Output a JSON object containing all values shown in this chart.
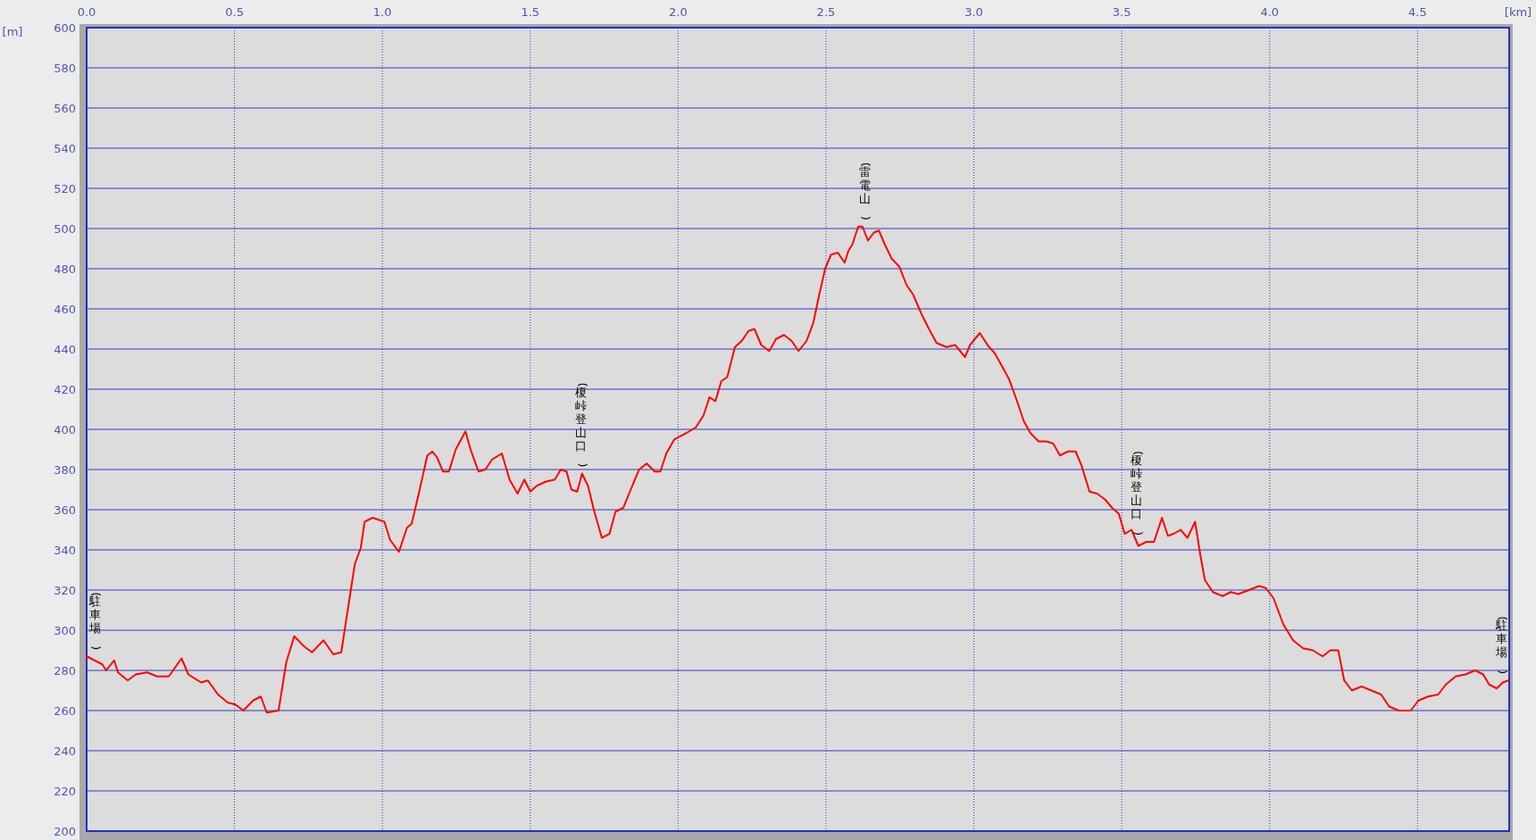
{
  "chart_data": {
    "type": "line",
    "xlabel": "[km]",
    "ylabel": "[m]",
    "xlim": [
      0,
      4.81
    ],
    "ylim": [
      200,
      600
    ],
    "xticks": [
      {
        "value": 0,
        "label": "0.0"
      },
      0.5,
      {
        "value": 1,
        "label": "1.0"
      },
      1.5,
      {
        "value": 2,
        "label": "2.0"
      },
      2.5,
      {
        "value": 3,
        "label": "3.0"
      },
      3.5,
      {
        "value": 4,
        "label": "4.0"
      },
      4.5
    ],
    "yticks": [
      200,
      220,
      240,
      260,
      280,
      300,
      320,
      340,
      360,
      380,
      400,
      420,
      440,
      460,
      480,
      500,
      520,
      540,
      560,
      580,
      600
    ],
    "grid": true,
    "marker": "none",
    "line_style": "solid",
    "x": [
      0,
      0.04,
      0.053,
      0.066,
      0.093,
      0.106,
      0.139,
      0.166,
      0.205,
      0.238,
      0.278,
      0.321,
      0.344,
      0.387,
      0.41,
      0.444,
      0.477,
      0.503,
      0.53,
      0.563,
      0.589,
      0.609,
      0.649,
      0.675,
      0.702,
      0.735,
      0.762,
      0.801,
      0.834,
      0.861,
      0.887,
      0.907,
      0.927,
      0.94,
      0.967,
      1.007,
      1.026,
      1.056,
      1.083,
      1.099,
      1.123,
      1.152,
      1.169,
      1.185,
      1.205,
      1.225,
      1.248,
      1.281,
      1.298,
      1.325,
      1.348,
      1.371,
      1.404,
      1.43,
      1.457,
      1.48,
      1.5,
      1.523,
      1.553,
      1.583,
      1.603,
      1.623,
      1.639,
      1.659,
      1.675,
      1.695,
      1.715,
      1.742,
      1.768,
      1.788,
      1.815,
      1.834,
      1.868,
      1.894,
      1.921,
      1.94,
      1.96,
      1.987,
      2.026,
      2.06,
      2.086,
      2.106,
      2.126,
      2.146,
      2.166,
      2.192,
      2.215,
      2.238,
      2.258,
      2.281,
      2.308,
      2.331,
      2.358,
      2.384,
      2.407,
      2.434,
      2.457,
      2.477,
      2.497,
      2.517,
      2.54,
      2.563,
      2.576,
      2.589,
      2.609,
      2.623,
      2.642,
      2.662,
      2.679,
      2.699,
      2.722,
      2.748,
      2.772,
      2.795,
      2.821,
      2.848,
      2.874,
      2.907,
      2.937,
      2.97,
      2.987,
      3.02,
      3.046,
      3.07,
      3.093,
      3.119,
      3.146,
      3.169,
      3.192,
      3.219,
      3.245,
      3.268,
      3.291,
      3.318,
      3.344,
      3.364,
      3.391,
      3.417,
      3.444,
      3.467,
      3.49,
      3.51,
      3.533,
      3.556,
      3.583,
      3.609,
      3.636,
      3.656,
      3.675,
      3.699,
      3.722,
      3.748,
      3.765,
      3.781,
      3.808,
      3.841,
      3.868,
      3.894,
      3.93,
      3.964,
      3.987,
      4.013,
      4.046,
      4.079,
      4.113,
      4.146,
      4.179,
      4.205,
      4.232,
      4.252,
      4.278,
      4.311,
      4.344,
      4.377,
      4.404,
      4.437,
      4.477,
      4.503,
      4.536,
      4.57,
      4.596,
      4.629,
      4.662,
      4.695,
      4.722,
      4.742,
      4.768,
      4.788,
      4.808
    ],
    "series": [
      {
        "color": "#ff0000",
        "values": [
          287,
          284,
          283,
          280,
          285,
          279,
          275,
          278,
          279,
          277,
          277,
          286,
          278,
          274,
          275,
          268,
          264,
          263,
          260,
          265,
          267,
          259,
          260,
          284,
          297,
          292,
          289,
          295,
          288,
          289,
          314,
          333,
          341,
          354,
          356,
          354,
          345,
          339,
          351,
          353,
          368,
          387,
          389,
          386,
          379,
          379,
          390,
          399,
          390,
          379,
          380,
          385,
          388,
          375,
          368,
          375,
          369,
          372,
          374,
          375,
          380,
          379,
          370,
          369,
          378,
          372,
          360,
          346,
          348,
          359,
          361,
          368,
          380,
          383,
          379,
          379,
          388,
          395,
          398,
          401,
          407,
          416,
          414,
          424,
          426,
          441,
          444,
          449,
          450,
          442,
          439,
          445,
          447,
          444,
          439,
          444,
          453,
          467,
          480,
          487,
          488,
          483,
          489,
          492,
          501,
          501,
          494,
          498,
          499,
          492,
          485,
          481,
          472,
          467,
          458,
          450,
          443,
          441,
          442,
          436,
          442,
          448,
          442,
          438,
          432,
          425,
          414,
          404,
          398,
          394,
          394,
          393,
          387,
          389,
          389,
          382,
          369,
          368,
          365,
          361,
          358,
          348,
          350,
          342,
          344,
          344,
          356,
          347,
          348,
          350,
          346,
          354,
          338,
          325,
          319,
          317,
          319,
          318,
          320,
          322,
          321,
          316,
          303,
          295,
          291,
          290,
          287,
          290,
          290,
          275,
          270,
          272,
          270,
          268,
          262,
          260,
          260,
          265,
          267,
          268,
          273,
          277,
          278,
          280,
          278,
          273,
          271,
          274,
          275
        ]
      }
    ],
    "annotations": [
      {
        "text": "(駐車場)",
        "x": 0,
        "y": 287
      },
      {
        "text": "(榎峠登山口)",
        "x": 1.67,
        "y": 378
      },
      {
        "text": "(雷電山)",
        "x": 2.63,
        "y": 501
      },
      {
        "text": "(榎峠登山口)",
        "x": 3.55,
        "y": 344
      },
      {
        "text": "(駐車場)",
        "x": 4.8,
        "y": 275
      }
    ]
  }
}
